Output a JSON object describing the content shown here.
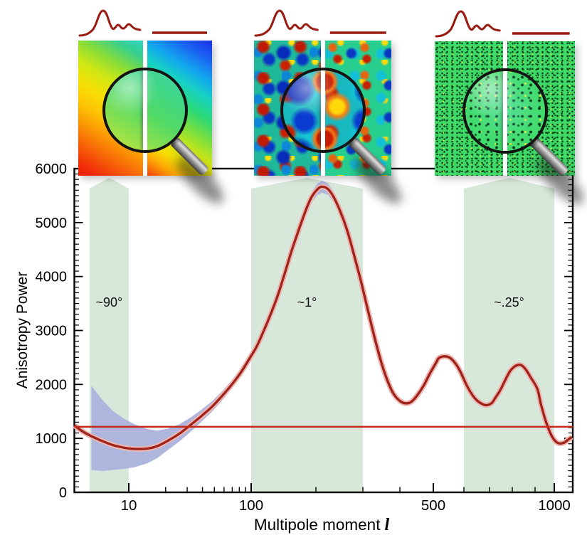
{
  "chart_data": {
    "type": "line",
    "title": "",
    "xlabel": "Multipole moment",
    "xlabel_symbol": "l",
    "ylabel": "Anisotropy Power",
    "xlim": [
      3.5,
      1095
    ],
    "ylim": [
      0,
      6000
    ],
    "x_scale": "compressed-log (10,100,500,1000 landmarks)",
    "grid": false,
    "x_ticks_major": [
      10,
      100,
      500,
      1000
    ],
    "x_ticks_minor": [
      20,
      30,
      40,
      50,
      60,
      70,
      80,
      90,
      200,
      300,
      400,
      600,
      700,
      800,
      900
    ],
    "y_ticks_major": [
      0,
      1000,
      2000,
      3000,
      4000,
      5000,
      6000
    ],
    "y_tick_minor_step": 100,
    "series": [
      {
        "name": "anisotropy power spectrum curve",
        "color": "#9e231b",
        "halo_color": "#edb6b0",
        "points": [
          [
            3.5,
            1240
          ],
          [
            4.2,
            1130
          ],
          [
            5.1,
            1040
          ],
          [
            6.2,
            950
          ],
          [
            7.5,
            875
          ],
          [
            9.1,
            830
          ],
          [
            11,
            805
          ],
          [
            14,
            810
          ],
          [
            17,
            855
          ],
          [
            21,
            960
          ],
          [
            26,
            1090
          ],
          [
            32,
            1250
          ],
          [
            39,
            1410
          ],
          [
            48,
            1590
          ],
          [
            58,
            1790
          ],
          [
            69,
            1990
          ],
          [
            82,
            2215
          ],
          [
            96,
            2465
          ],
          [
            106,
            2700
          ],
          [
            114,
            2980
          ],
          [
            123,
            3295
          ],
          [
            133,
            3650
          ],
          [
            143,
            4050
          ],
          [
            154,
            4470
          ],
          [
            167,
            4880
          ],
          [
            180,
            5240
          ],
          [
            191,
            5475
          ],
          [
            203,
            5620
          ],
          [
            211,
            5665
          ],
          [
            222,
            5620
          ],
          [
            233,
            5475
          ],
          [
            246,
            5225
          ],
          [
            261,
            4880
          ],
          [
            277,
            4430
          ],
          [
            295,
            3915
          ],
          [
            312,
            3375
          ],
          [
            330,
            2830
          ],
          [
            348,
            2370
          ],
          [
            366,
            2025
          ],
          [
            382,
            1815
          ],
          [
            400,
            1695
          ],
          [
            415,
            1650
          ],
          [
            432,
            1680
          ],
          [
            448,
            1790
          ],
          [
            468,
            1970
          ],
          [
            488,
            2195
          ],
          [
            509,
            2410
          ],
          [
            517,
            2490
          ],
          [
            535,
            2520
          ],
          [
            553,
            2490
          ],
          [
            573,
            2370
          ],
          [
            590,
            2210
          ],
          [
            610,
            1985
          ],
          [
            632,
            1800
          ],
          [
            651,
            1695
          ],
          [
            671,
            1635
          ],
          [
            688,
            1615
          ],
          [
            709,
            1655
          ],
          [
            724,
            1750
          ],
          [
            745,
            1890
          ],
          [
            767,
            2075
          ],
          [
            790,
            2250
          ],
          [
            809,
            2330
          ],
          [
            824,
            2360
          ],
          [
            839,
            2355
          ],
          [
            858,
            2275
          ],
          [
            880,
            2130
          ],
          [
            911,
            1920
          ],
          [
            929,
            1640
          ],
          [
            954,
            1325
          ],
          [
            977,
            1110
          ],
          [
            996,
            990
          ],
          [
            1013,
            925
          ],
          [
            1030,
            905
          ],
          [
            1051,
            925
          ],
          [
            1072,
            980
          ],
          [
            1090,
            1025
          ]
        ]
      },
      {
        "name": "horizontal reference line",
        "color": "#c5281c",
        "value": 1215
      }
    ],
    "uncertainty_band": {
      "color": "#aeb6dd",
      "l_range": [
        4.9,
        460
      ]
    },
    "angular_scale_bands": {
      "color": "#d7e8da",
      "items": [
        {
          "label": "~90°",
          "l_range": [
            4.9,
            10
          ]
        },
        {
          "label": "~1°",
          "l_range": [
            100,
            300
          ]
        },
        {
          "label": "~.25°",
          "l_range": [
            600,
            1000
          ]
        }
      ]
    }
  },
  "insets": {
    "sketch_color": "#991b12",
    "items": [
      {
        "id": "largest-angular-scales-map"
      },
      {
        "id": "degree-scale-fluctuations-map"
      },
      {
        "id": "fine-scale-speckle-map"
      }
    ]
  }
}
